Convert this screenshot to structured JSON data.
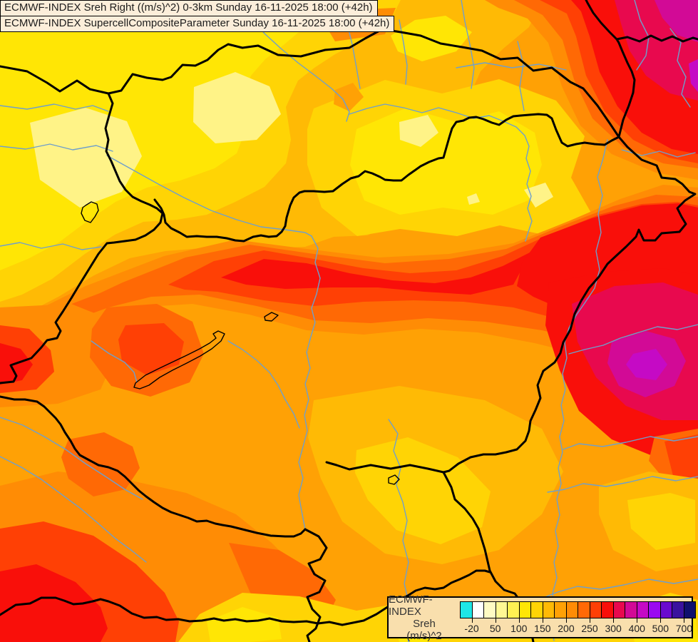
{
  "title_box": {
    "line1": "ECMWF-INDEX Sreh Right ((m/s)^2) 0-3km Sunday 16-11-2025 18:00 (+42h)",
    "line2": "ECMWF-INDEX SupercellCompositeParameter Sunday 16-11-2025 18:00 (+42h)",
    "background": "#FCEEDA",
    "text_color": "#1c1c1c"
  },
  "legend": {
    "title_lines": [
      "ECMWF-INDEX",
      "Sreh",
      "(m/s)^2"
    ],
    "ticks": [
      "-20",
      "50",
      "100",
      "150",
      "200",
      "250",
      "300",
      "400",
      "500",
      "700"
    ],
    "swatches": [
      "#1EE6E6",
      "#FFFFFF",
      "#FFFBC4",
      "#FFF894",
      "#FFF152",
      "#FFE605",
      "#FFD405",
      "#FFBA05",
      "#FFA105",
      "#FF8C05",
      "#FF6905",
      "#FF4005",
      "#F90F0A",
      "#E8094E",
      "#D20A96",
      "#C50AC5",
      "#9B0AF0",
      "#6A0ACF",
      "#3A129E",
      "#10106E"
    ],
    "background": "#F9DFAD"
  },
  "map": {
    "palette": {
      "L1": "#1EE6E6",
      "L2": "#FFFFFF",
      "L3": "#FFFBC4",
      "L4": "#FFF894",
      "L5": "#FFF152",
      "L6": "#FFE605",
      "L7": "#FFD405",
      "L8": "#FFBA05",
      "L9": "#FFA105",
      "L10": "#FF8C05",
      "L11": "#FF6905",
      "L12": "#FF4005",
      "L13": "#F90F0A",
      "L14": "#E8094E",
      "L15": "#D20A96",
      "L16": "#C50AC5",
      "pale": "#FFF387"
    },
    "border_color": "#000000",
    "river_color": "#6F9FCB",
    "lake_outline_color": "#000000"
  }
}
